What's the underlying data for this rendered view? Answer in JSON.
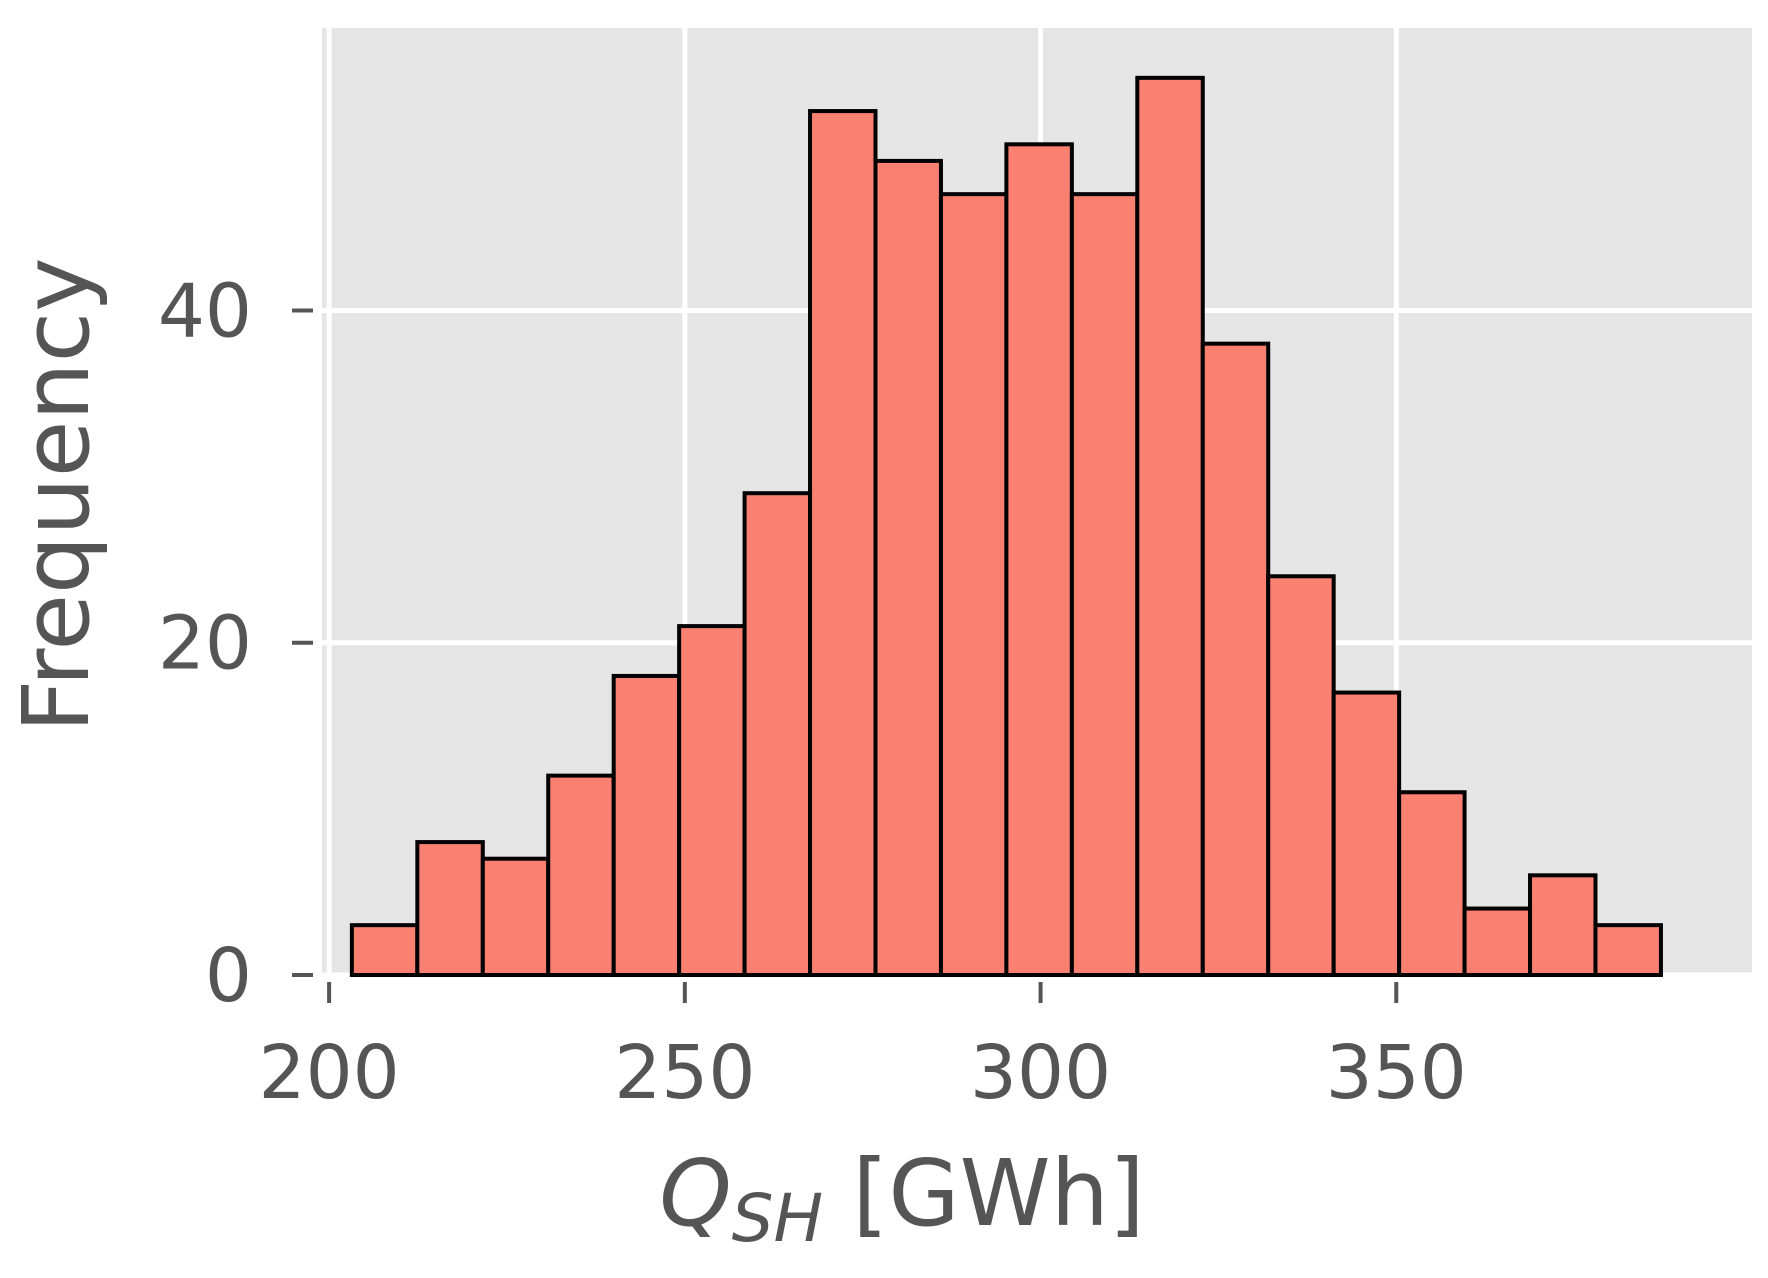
{
  "colors": {
    "panel_bg": "#e5e5e5",
    "grid": "#ffffff",
    "bar_fill": "#fa8072",
    "bar_edge": "#000000",
    "text": "#555555"
  },
  "chart_data": {
    "type": "bar",
    "subtype": "histogram",
    "title": "",
    "xlabel": {
      "main": "Q",
      "subscript": "SH",
      "unit": "[GWh]"
    },
    "ylabel": "Frequency",
    "xlim": [
      199,
      400
    ],
    "ylim": [
      0,
      57
    ],
    "x_ticks": [
      200,
      250,
      300,
      350
    ],
    "x_tick_labels": [
      "200",
      "250",
      "300",
      "350"
    ],
    "y_ticks": [
      0,
      20,
      40
    ],
    "y_tick_labels": [
      "0",
      "20",
      "40"
    ],
    "grid": true,
    "bin_edges": [
      203.2,
      212.4,
      221.6,
      230.8,
      240.0,
      249.2,
      258.4,
      267.6,
      276.8,
      286.0,
      295.2,
      304.4,
      313.6,
      322.8,
      332.0,
      341.2,
      350.4,
      359.6,
      368.8,
      378.0,
      387.2
    ],
    "values": [
      3,
      8,
      7,
      12,
      18,
      21,
      29,
      52,
      49,
      47,
      50,
      47,
      54,
      38,
      24,
      17,
      11,
      4,
      6,
      3
    ]
  }
}
